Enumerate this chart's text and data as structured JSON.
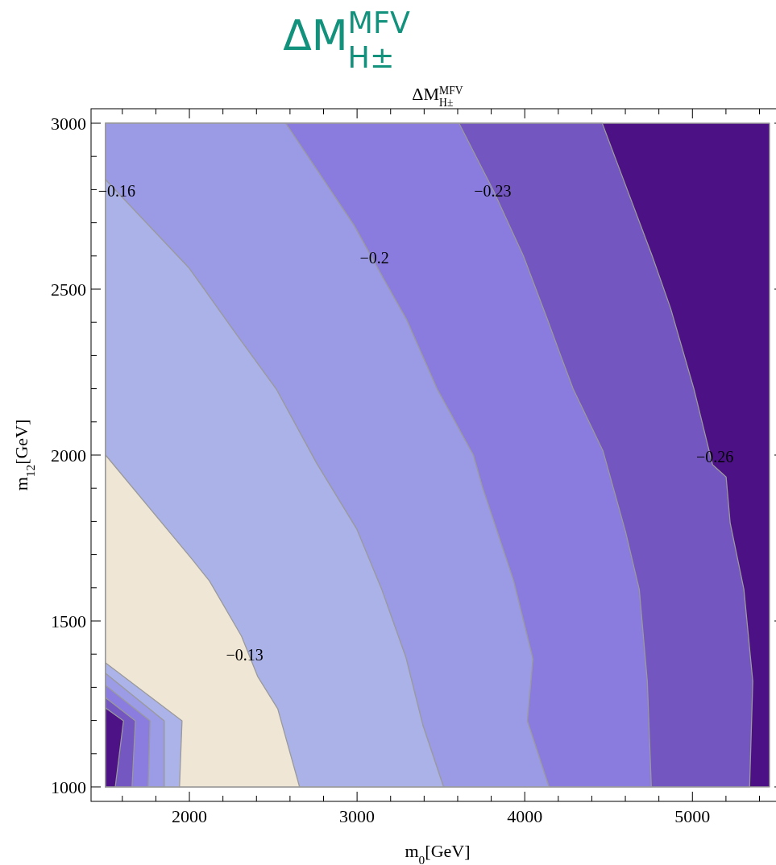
{
  "chart_data": {
    "type": "area",
    "orientation": "horizontal",
    "title": "ΔM$^{MFV}$$_{H±}$",
    "subtitle": "ΔM$^{MFV}$$_{H±}$",
    "xlabel": "m$_{0}$[GeV]",
    "ylabel": "m$_{12}$[GeV]",
    "xlim": [
      1500,
      5460
    ],
    "ylim": [
      1000,
      3000
    ],
    "xticks": [
      {
        "value": 1600,
        "label": null
      },
      {
        "value": 1800,
        "label": null
      },
      2000,
      {
        "value": 2200,
        "label": null
      },
      {
        "value": 2400,
        "label": null
      },
      {
        "value": 2600,
        "label": null
      },
      {
        "value": 2800,
        "label": null
      },
      3000,
      {
        "value": 3200,
        "label": null
      },
      {
        "value": 3400,
        "label": null
      },
      {
        "value": 3600,
        "label": null
      },
      {
        "value": 3800,
        "label": null
      },
      4000,
      {
        "value": 4200,
        "label": null
      },
      {
        "value": 4400,
        "label": null
      },
      {
        "value": 4600,
        "label": null
      },
      {
        "value": 4800,
        "label": null
      },
      5000,
      {
        "value": 5200,
        "label": null
      },
      {
        "value": 5400,
        "label": null
      }
    ],
    "yticks": [
      1000,
      {
        "value": 1100,
        "label": null
      },
      {
        "value": 1200,
        "label": null
      },
      {
        "value": 1300,
        "label": null
      },
      {
        "value": 1400,
        "label": null
      },
      1500,
      {
        "value": 1600,
        "label": null
      },
      {
        "value": 1700,
        "label": null
      },
      {
        "value": 1800,
        "label": null
      },
      {
        "value": 1900,
        "label": null
      },
      2000,
      {
        "value": 2100,
        "label": null
      },
      {
        "value": 2200,
        "label": null
      },
      {
        "value": 2300,
        "label": null
      },
      {
        "value": 2400,
        "label": null
      },
      2500,
      {
        "value": 2600,
        "label": null
      },
      {
        "value": 2700,
        "label": null
      },
      {
        "value": 2800,
        "label": null
      },
      {
        "value": 2900,
        "label": null
      },
      3000
    ],
    "series": [
      {
        "color": "#4b1185",
        "values": [
          5460,
          5460
        ],
        "x": [
          1000,
          3000
        ]
      },
      {
        "color": "#7356bf",
        "values": [
          5341,
          5360,
          5307,
          5225,
          5201,
          5120,
          5009,
          4870,
          4760,
          4462
        ],
        "x": [
          1000,
          1318,
          1595,
          1796,
          1934,
          1971,
          2199,
          2442,
          2600,
          3000
        ]
      },
      {
        "color": "#8a7cdf",
        "values": [
          4755,
          4731,
          4683,
          4601,
          4467,
          4289,
          4217,
          4136,
          3992,
          3814,
          3608
        ],
        "x": [
          1000,
          1318,
          1595,
          1769,
          2012,
          2199,
          2296,
          2408,
          2600,
          2796,
          3000
        ]
      },
      {
        "color": "#9a9ae5",
        "values": [
          4145,
          4016,
          4049,
          3934,
          3747,
          3694,
          3478,
          3296,
          3161,
          2983,
          2575
        ],
        "x": [
          1000,
          1199,
          1386,
          1621,
          1905,
          2000,
          2199,
          2408,
          2529,
          2692,
          3000
        ]
      },
      {
        "color": "#abb2e8",
        "values": [
          3516,
          3392,
          3291,
          3147,
          2998,
          2758,
          2518,
          2263,
          1999,
          1500
        ],
        "x": [
          1000,
          1187,
          1391,
          1595,
          1777,
          1976,
          2199,
          2376,
          2563,
          2830
        ]
      },
      {
        "color": "#f0e6d6",
        "values": [
          2657,
          2527,
          2407,
          2311,
          2119,
          2014,
          1500
        ],
        "x": [
          1000,
          1235,
          1333,
          1454,
          1621,
          1687,
          2000
        ]
      },
      {
        "color": "#acb3e9",
        "values": [
          1941,
          1956,
          1500
        ],
        "x": [
          1000,
          1199,
          1374
        ]
      },
      {
        "color": "#9b9be6",
        "values": [
          1850,
          1850,
          1500
        ],
        "x": [
          1000,
          1199,
          1342
        ]
      },
      {
        "color": "#8b7de0",
        "values": [
          1754,
          1765,
          1500
        ],
        "x": [
          1000,
          1199,
          1306
        ]
      },
      {
        "color": "#7457c0",
        "values": [
          1658,
          1678,
          1500
        ],
        "x": [
          1000,
          1199,
          1269
        ]
      },
      {
        "color": "#4c1286",
        "values": [
          1558,
          1607,
          1500
        ],
        "x": [
          1000,
          1199,
          1238
        ]
      }
    ],
    "annotations": [
      {
        "text": "−0.13",
        "x": 2330,
        "y": 1398
      },
      {
        "text": "−0.16",
        "x": 1567,
        "y": 2796
      },
      {
        "text": "−0.2",
        "x": 3103,
        "y": 2594
      },
      {
        "text": "−0.23",
        "x": 3809,
        "y": 2796
      },
      {
        "text": "−0.26",
        "x": 5134,
        "y": 1995
      }
    ]
  }
}
